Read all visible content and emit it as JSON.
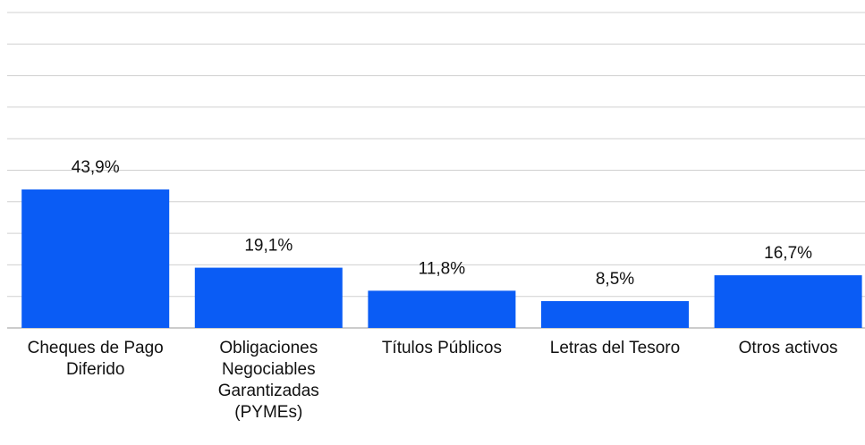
{
  "chart_data": {
    "type": "bar",
    "categories": [
      "Cheques de Pago Diferido",
      "Obligaciones Negociables Garantizadas (PYMEs)",
      "Títulos Públicos",
      "Letras del Tesoro",
      "Otros activos"
    ],
    "values": [
      43.9,
      19.1,
      11.8,
      8.5,
      16.7
    ],
    "value_labels": [
      "43,9%",
      "19,1%",
      "11,8%",
      "8,5%",
      "16,7%"
    ],
    "color": "#0a5cf5",
    "ylim": [
      0,
      100
    ],
    "yticks": [
      0,
      10,
      20,
      30,
      40,
      50,
      60,
      70,
      80,
      90,
      100
    ],
    "grid": true
  }
}
